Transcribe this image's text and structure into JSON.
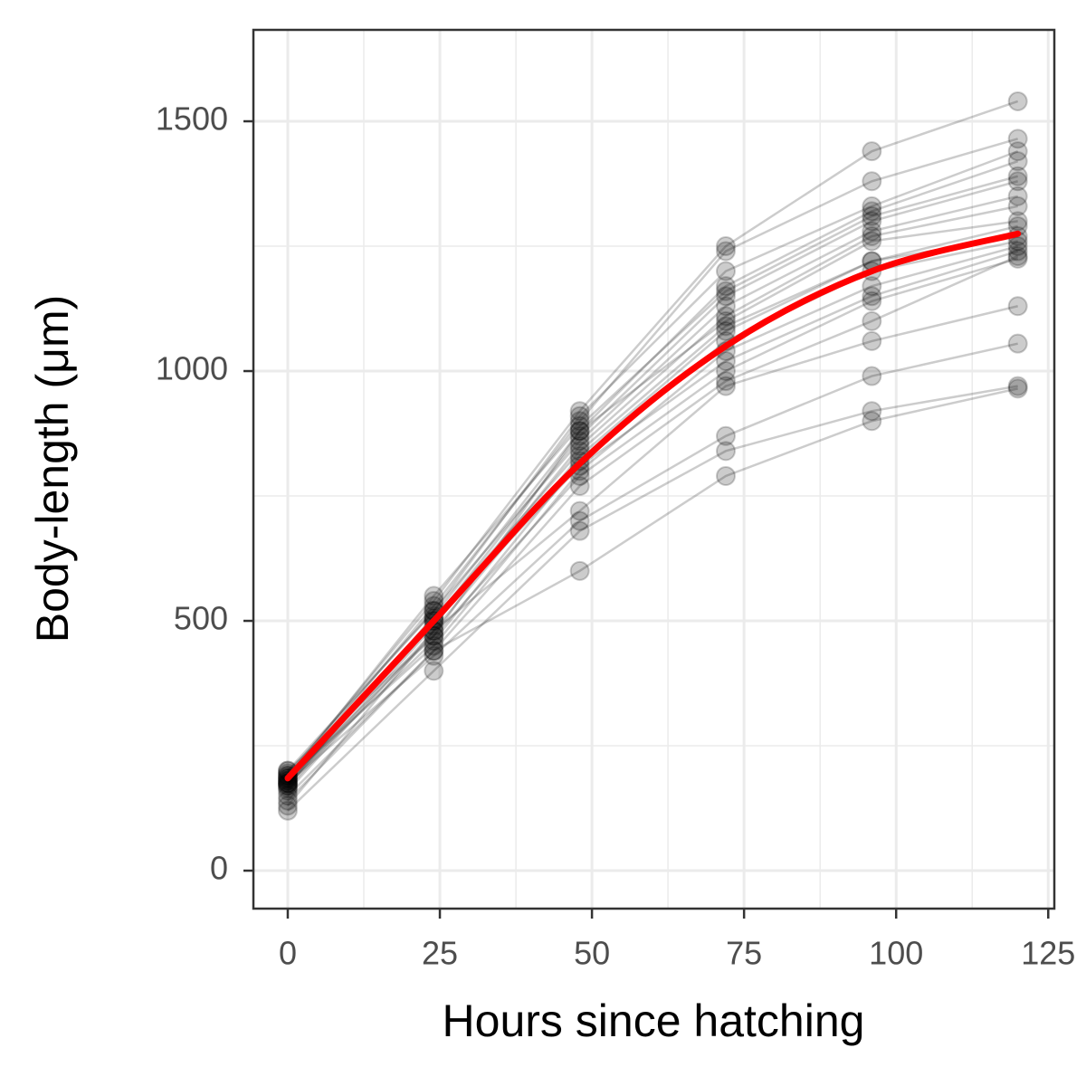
{
  "chart_data": {
    "type": "line",
    "x_label": "Hours since hatching",
    "y_label": "Body-length (μm)",
    "x": [
      0,
      24,
      48,
      72,
      96,
      120
    ],
    "xlim": [
      -5.65,
      126
    ],
    "ylim": [
      -76,
      1683
    ],
    "xticks": [
      0,
      25,
      50,
      75,
      100,
      125
    ],
    "yticks": [
      0,
      500,
      1000,
      1500
    ],
    "x_minor_grid": [
      12.5,
      37.5,
      62.5,
      87.5,
      112.5
    ],
    "y_minor_grid": [
      250,
      750,
      1250
    ],
    "grid": true,
    "series": [
      {
        "color": "#000000",
        "values": [
          190,
          540,
          920,
          1250,
          1440,
          1540
        ]
      },
      {
        "color": "#000000",
        "values": [
          180,
          530,
          900,
          1240,
          1380,
          1465
        ]
      },
      {
        "color": "#000000",
        "values": [
          200,
          520,
          910,
          1200,
          1330,
          1440
        ]
      },
      {
        "color": "#000000",
        "values": [
          170,
          510,
          880,
          1170,
          1320,
          1420
        ]
      },
      {
        "color": "#000000",
        "values": [
          185,
          550,
          890,
          1160,
          1310,
          1390
        ]
      },
      {
        "color": "#000000",
        "values": [
          175,
          500,
          870,
          1150,
          1300,
          1380
        ]
      },
      {
        "color": "#000000",
        "values": [
          195,
          520,
          860,
          1130,
          1280,
          1350
        ]
      },
      {
        "color": "#000000",
        "values": [
          165,
          490,
          850,
          1110,
          1270,
          1330
        ]
      },
      {
        "color": "#000000",
        "values": [
          180,
          470,
          880,
          1100,
          1260,
          1300
        ]
      },
      {
        "color": "#000000",
        "values": [
          190,
          505,
          840,
          1090,
          1220,
          1290
        ]
      },
      {
        "color": "#000000",
        "values": [
          160,
          480,
          830,
          1080,
          1220,
          1270
        ]
      },
      {
        "color": "#000000",
        "values": [
          175,
          460,
          820,
          1060,
          1200,
          1260
        ]
      },
      {
        "color": "#000000",
        "values": [
          185,
          450,
          800,
          1040,
          1170,
          1250
        ]
      },
      {
        "color": "#000000",
        "values": [
          170,
          500,
          810,
          1020,
          1150,
          1240
        ]
      },
      {
        "color": "#000000",
        "values": [
          200,
          470,
          790,
          1000,
          1140,
          1225
        ]
      },
      {
        "color": "#000000",
        "values": [
          150,
          440,
          770,
          980,
          1100,
          1230
        ]
      },
      {
        "color": "#000000",
        "values": [
          130,
          480,
          720,
          970,
          1060,
          1130
        ]
      },
      {
        "color": "#000000",
        "values": [
          175,
          430,
          700,
          870,
          990,
          1055
        ]
      },
      {
        "color": "#000000",
        "values": [
          120,
          400,
          680,
          840,
          920,
          970
        ]
      },
      {
        "color": "#000000",
        "values": [
          140,
          440,
          600,
          790,
          900,
          965
        ]
      }
    ],
    "fit": {
      "color": "#ff0000",
      "values": [
        185,
        500,
        815,
        1050,
        1200,
        1275
      ]
    }
  }
}
